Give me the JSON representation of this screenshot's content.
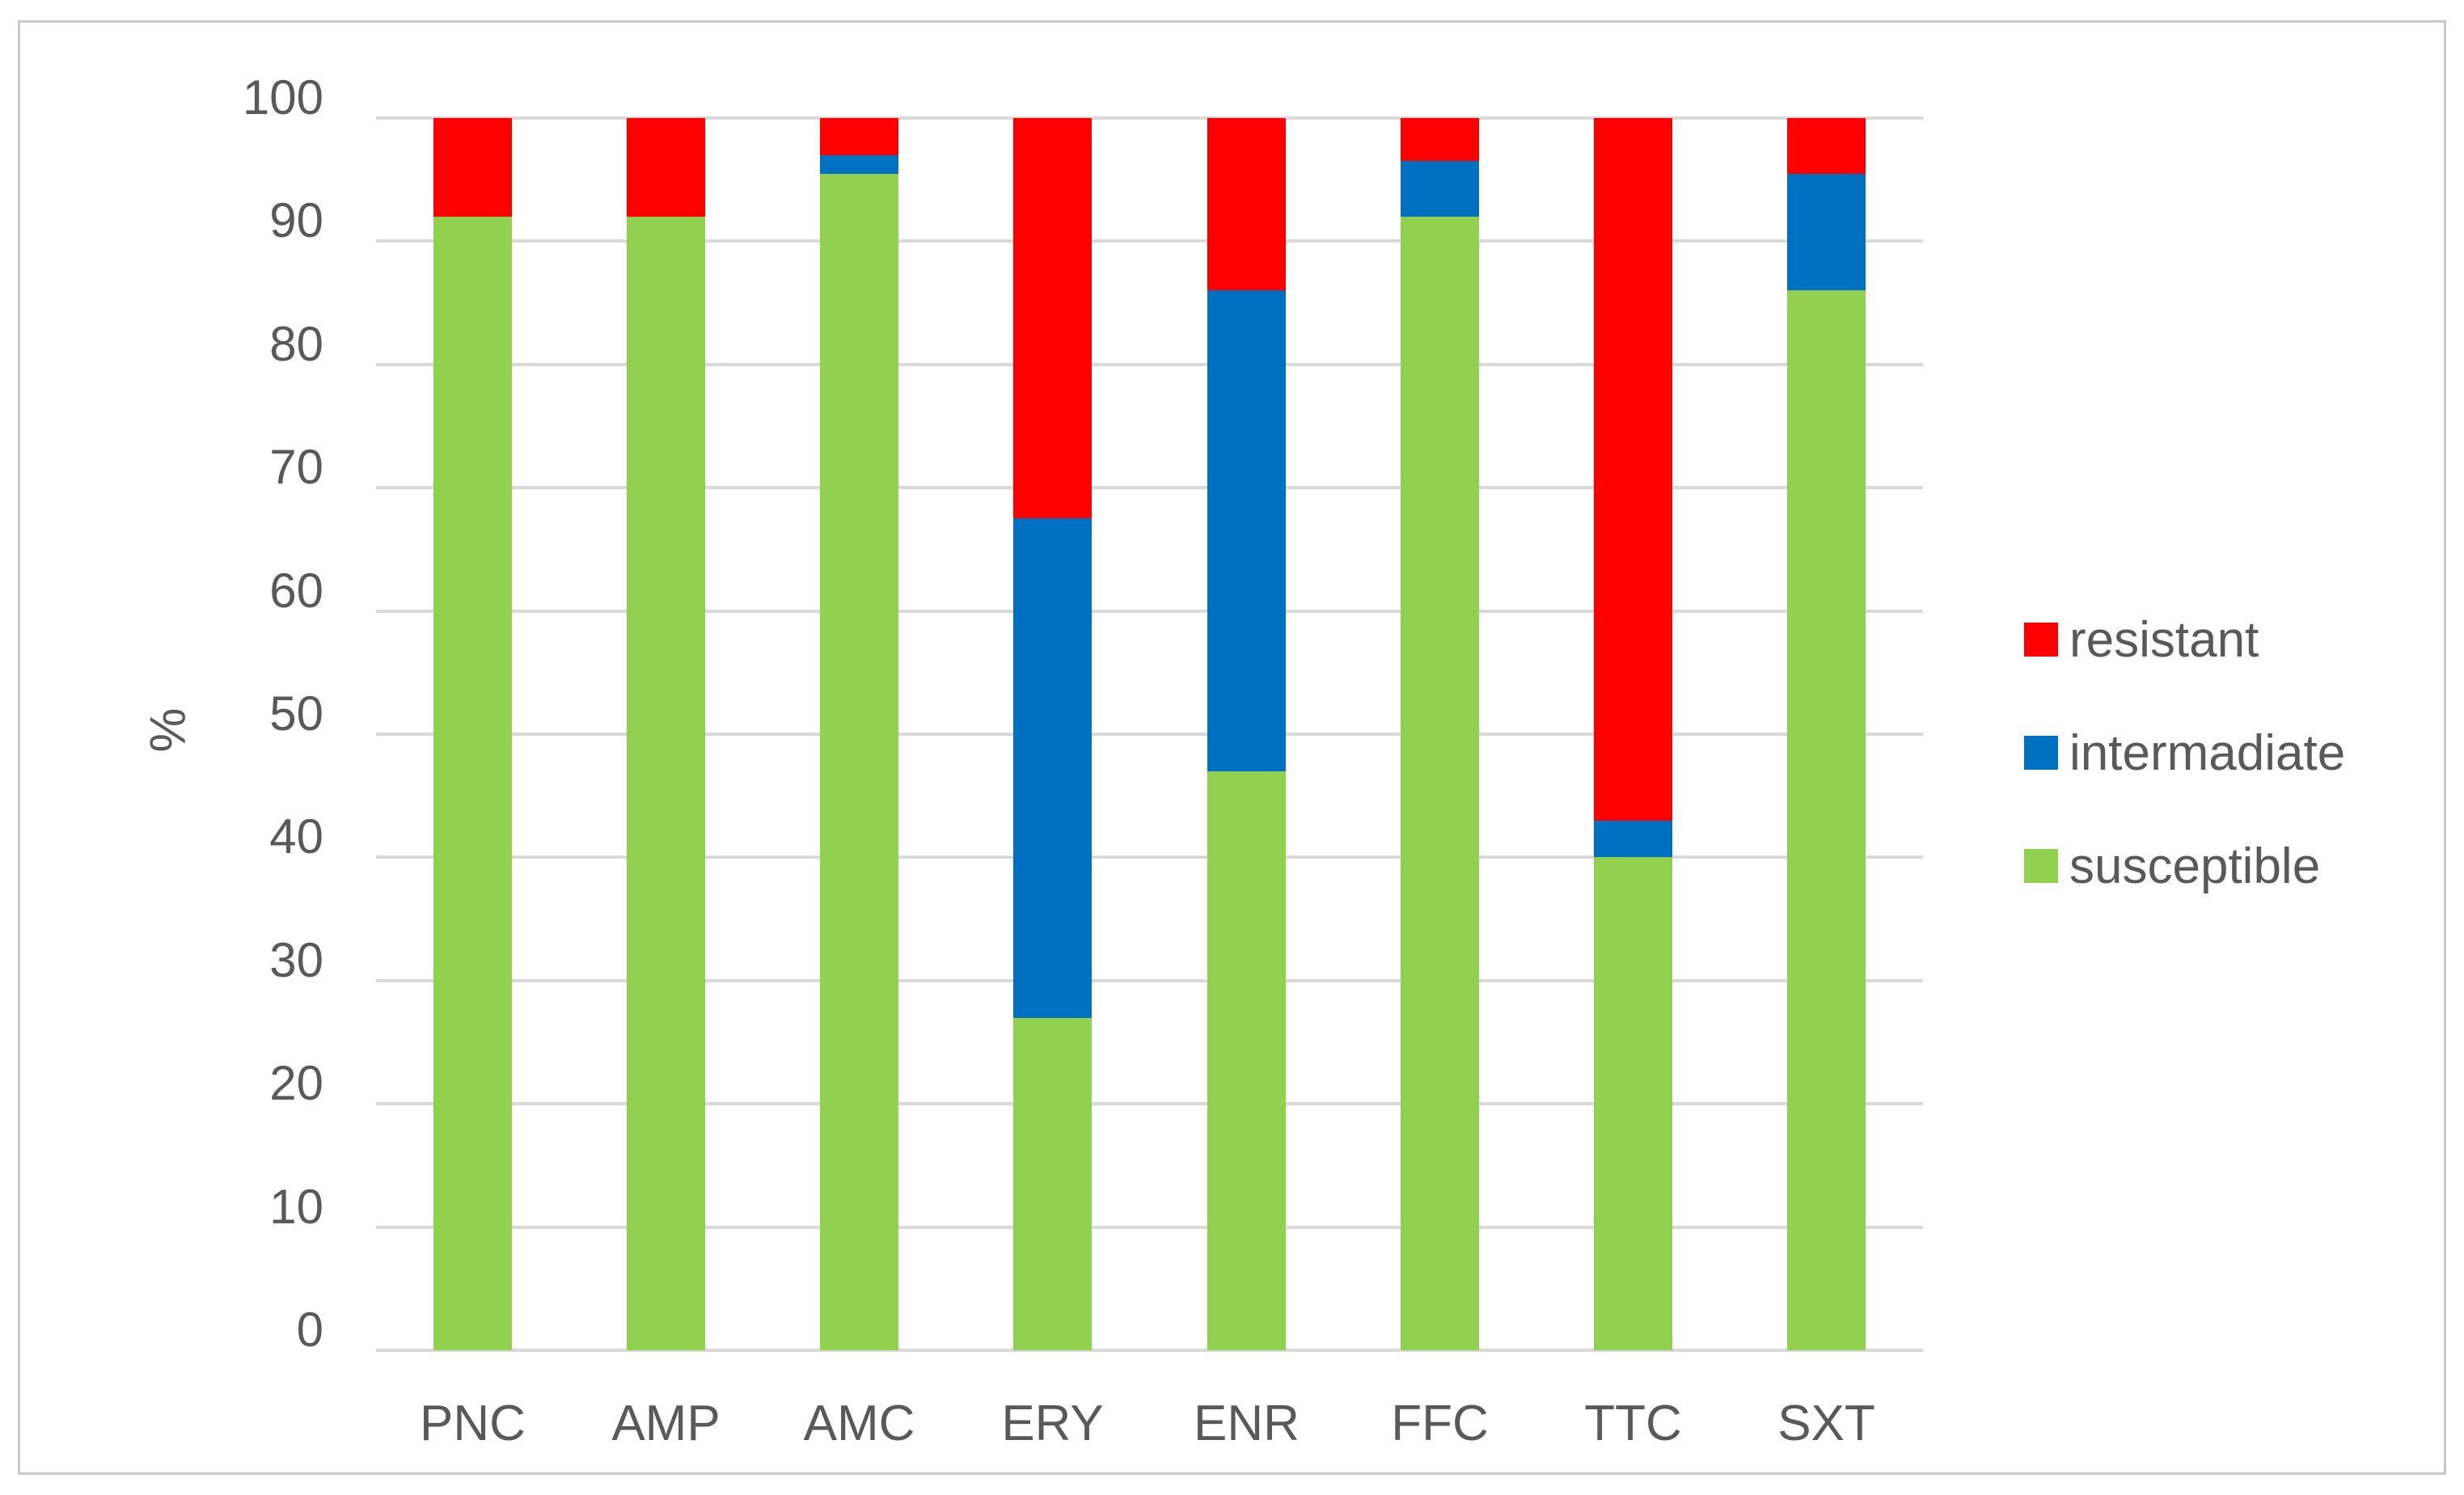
{
  "chart_data": {
    "type": "bar",
    "stacked": true,
    "stacked_unit": "percent",
    "title": "",
    "xlabel": "",
    "ylabel": "%",
    "ylim": [
      0,
      100
    ],
    "y_ticks": [
      0,
      10,
      20,
      30,
      40,
      50,
      60,
      70,
      80,
      90,
      100
    ],
    "grid": true,
    "legend_position": "right",
    "categories": [
      "PNC",
      "AMP",
      "AMC",
      "ERY",
      "ENR",
      "FFC",
      "TTC",
      "SXT"
    ],
    "series": [
      {
        "name": "resistant",
        "color": "#ff0000",
        "values": [
          8,
          8,
          3,
          32.5,
          14,
          3.5,
          57,
          4.5
        ]
      },
      {
        "name": "intermadiate",
        "color": "#0070c0",
        "values": [
          0,
          0,
          1.5,
          40.5,
          39,
          4.5,
          3,
          9.5
        ]
      },
      {
        "name": "susceptible",
        "color": "#92d050",
        "values": [
          92,
          92,
          95.5,
          27,
          47,
          92,
          40,
          86
        ]
      }
    ],
    "stack_order_bottom_to_top": [
      "susceptible",
      "intermadiate",
      "resistant"
    ]
  },
  "colors": {
    "gridline": "#d9d9d9",
    "axis_text": "#595959",
    "frame_border": "#c9c9c9",
    "background": "#ffffff"
  }
}
